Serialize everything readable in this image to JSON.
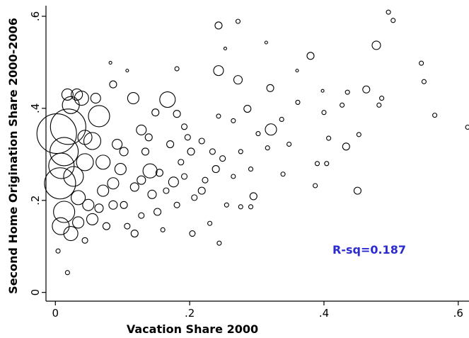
{
  "chart_data": {
    "type": "scatter",
    "x_label": "Vacation Share 2000",
    "y_label": "Second Home Origination Share 2000-2006",
    "annotation": "R-sq=0.187",
    "color": "#000000",
    "xlim": [
      -0.014,
      0.616
    ],
    "ylim": [
      -0.019,
      0.62
    ],
    "xticks": [
      0,
      {
        "value": 0.2,
        "label": ".2"
      },
      {
        "value": 0.4,
        "label": ".4"
      },
      {
        "value": 0.6,
        "label": ".6"
      }
    ],
    "yticks": [
      0,
      {
        "value": 0.2,
        "label": ".2"
      },
      {
        "value": 0.4,
        "label": ".4"
      },
      {
        "value": 0.6,
        "label": ".6"
      }
    ],
    "x": [
      0.496,
      0.503,
      0.478,
      0.243,
      0.272,
      0.314,
      0.253,
      0.38,
      0.545,
      0.549,
      0.565,
      0.614,
      0.243,
      0.272,
      0.181,
      0.107,
      0.082,
      0.086,
      0.116,
      0.167,
      0.32,
      0.36,
      0.398,
      0.435,
      0.486,
      0.463,
      0.482,
      0.427,
      0.4,
      0.361,
      0.321,
      0.286,
      0.243,
      0.265,
      0.348,
      0.433,
      0.407,
      0.452,
      0.39,
      0.404,
      0.387,
      0.45,
      0.295,
      0.276,
      0.291,
      0.244,
      0.23,
      0.204,
      0.339,
      0.181,
      0.202,
      0.239,
      0.265,
      0.218,
      0.176,
      0.141,
      0.128,
      0.092,
      0.055,
      0.019,
      0.007,
      0.013,
      0.023,
      0.065,
      0.039,
      0.018,
      0.032,
      0.06,
      0.152,
      0.118,
      0.076,
      0.044,
      0.023,
      0.004,
      0.018,
      0.013,
      0.034,
      0.086,
      0.102,
      0.134,
      0.171,
      0.149,
      0.192,
      0.223,
      0.316,
      0.337,
      0.302,
      0.255,
      0.207,
      0.181,
      0.128,
      0.107,
      0.16,
      0.009,
      0.008,
      0.027,
      0.044,
      0.071,
      0.002,
      0.055,
      0.071,
      0.097,
      0.044,
      0.102,
      0.118,
      0.144,
      0.155,
      0.187,
      0.197,
      0.218,
      0.234,
      0.249,
      0.276,
      0.291,
      0.192,
      0.165,
      0.139,
      0.128,
      0.086,
      0.065,
      0.034,
      0.049
    ],
    "y": [
      0.609,
      0.591,
      0.537,
      0.58,
      0.589,
      0.543,
      0.53,
      0.514,
      0.498,
      0.458,
      0.385,
      0.359,
      0.482,
      0.462,
      0.486,
      0.482,
      0.499,
      0.452,
      0.422,
      0.419,
      0.444,
      0.482,
      0.438,
      0.435,
      0.422,
      0.441,
      0.407,
      0.407,
      0.391,
      0.413,
      0.354,
      0.399,
      0.383,
      0.373,
      0.322,
      0.317,
      0.335,
      0.343,
      0.28,
      0.28,
      0.232,
      0.221,
      0.209,
      0.186,
      0.186,
      0.107,
      0.15,
      0.128,
      0.257,
      0.388,
      0.306,
      0.268,
      0.252,
      0.221,
      0.24,
      0.264,
      0.353,
      0.322,
      0.329,
      0.36,
      0.237,
      0.306,
      0.407,
      0.383,
      0.422,
      0.43,
      0.43,
      0.422,
      0.175,
      0.128,
      0.144,
      0.113,
      0.128,
      0.09,
      0.043,
      0.175,
      0.206,
      0.237,
      0.19,
      0.306,
      0.322,
      0.391,
      0.36,
      0.244,
      0.314,
      0.376,
      0.345,
      0.19,
      0.206,
      0.19,
      0.167,
      0.144,
      0.136,
      0.275,
      0.144,
      0.252,
      0.283,
      0.283,
      0.345,
      0.159,
      0.221,
      0.268,
      0.337,
      0.306,
      0.229,
      0.213,
      0.26,
      0.283,
      0.337,
      0.329,
      0.306,
      0.291,
      0.306,
      0.268,
      0.252,
      0.221,
      0.337,
      0.244,
      0.19,
      0.183,
      0.152,
      0.19
    ],
    "sizes": [
      3,
      3,
      6,
      5,
      3,
      2,
      2,
      5,
      3,
      3,
      3,
      3,
      7,
      6,
      3,
      2,
      2,
      5,
      8,
      11,
      5,
      2,
      2,
      3,
      3,
      5,
      3,
      3,
      3,
      3,
      8,
      5,
      3,
      3,
      3,
      5,
      3,
      3,
      3,
      3,
      3,
      5,
      5,
      3,
      3,
      3,
      3,
      4,
      3,
      5,
      5,
      5,
      3,
      5,
      7,
      10,
      7,
      7,
      12,
      25,
      22,
      20,
      12,
      15,
      10,
      8,
      8,
      7,
      5,
      5,
      5,
      4,
      10,
      3,
      3,
      15,
      10,
      8,
      5,
      5,
      5,
      5,
      4,
      4,
      3,
      3,
      3,
      3,
      4,
      4,
      4,
      4,
      3,
      18,
      12,
      14,
      12,
      10,
      28,
      8,
      8,
      8,
      10,
      6,
      6,
      6,
      5,
      4,
      4,
      4,
      4,
      4,
      3,
      3,
      4,
      4,
      5,
      6,
      6,
      6,
      8,
      8
    ]
  }
}
